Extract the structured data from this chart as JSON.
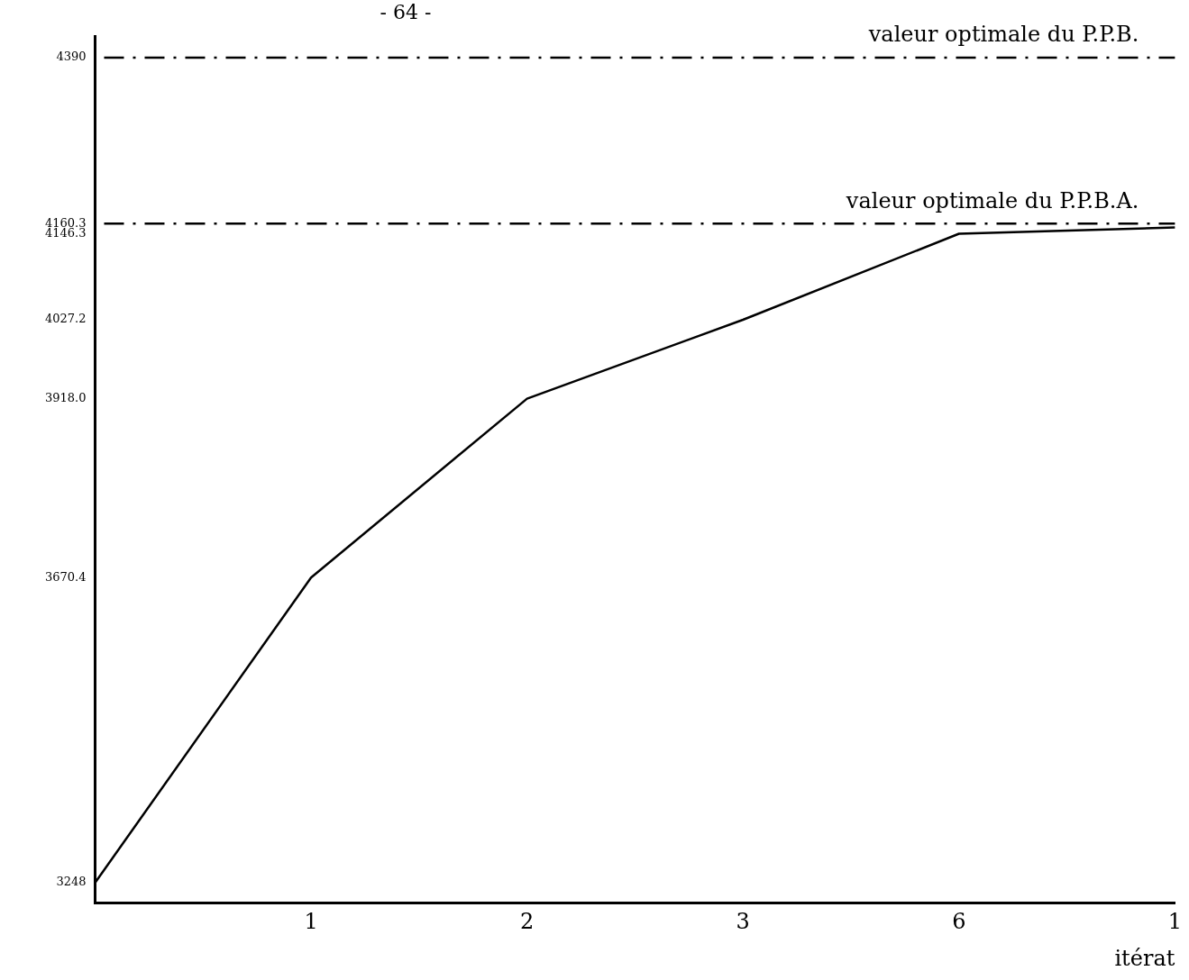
{
  "chart_data": {
    "type": "line",
    "xlabel": "itérat",
    "annotations": [
      "- 64 -"
    ],
    "categories": [
      null,
      "1",
      "2",
      "3",
      "6",
      "1"
    ],
    "values": [
      3248,
      3670.4,
      3918,
      4027.2,
      4146.3,
      4155
    ],
    "color": "#000000",
    "ylim": [
      3220,
      4420
    ],
    "yticks": [
      3248,
      3670.4,
      {
        "value": 3918,
        "label": "3918.0"
      },
      4027.2,
      4146.3,
      4160.3,
      4390
    ],
    "ref_lines": [
      {
        "axis": "y",
        "value": 4390,
        "label": "valeur optimale du P.P.B.",
        "line_style": "dashdot",
        "color": "#000000"
      },
      {
        "axis": "y",
        "value": 4160.3,
        "label": "valeur optimale du P.P.B.A.",
        "line_style": "dashdot",
        "color": "#000000"
      }
    ],
    "grid": false,
    "legend": false,
    "marker": "none",
    "line_style": "solid"
  }
}
